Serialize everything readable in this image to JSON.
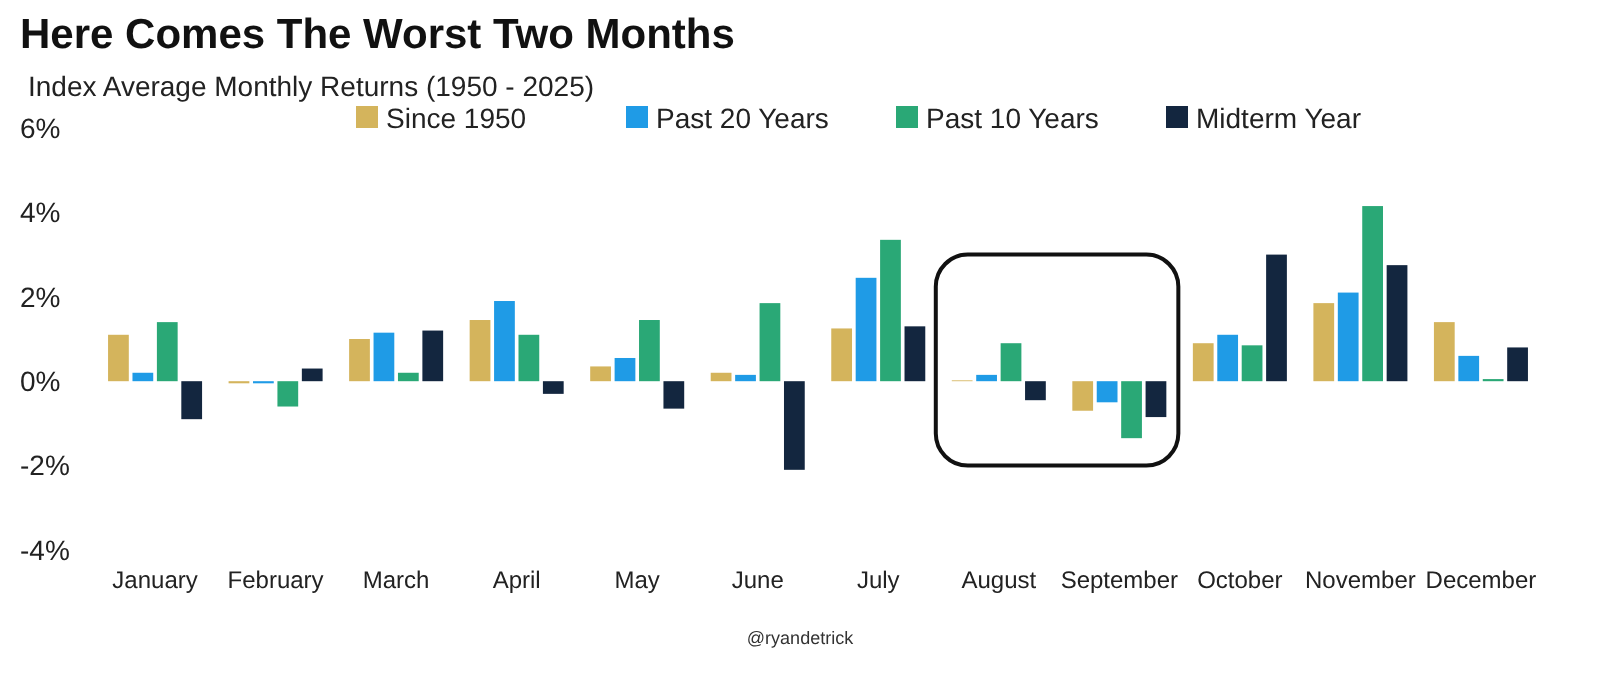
{
  "chart_data": {
    "type": "bar",
    "title": "Here Comes The Worst Two Months",
    "subtitle": "Index Average Monthly Returns (1950 - 2025)",
    "categories": [
      "January",
      "February",
      "March",
      "April",
      "May",
      "June",
      "July",
      "August",
      "September",
      "October",
      "November",
      "December"
    ],
    "series": [
      {
        "name": "Since 1950",
        "color": "#d4b45c",
        "values": [
          1.1,
          -0.05,
          1.0,
          1.45,
          0.35,
          0.2,
          1.25,
          0.02,
          -0.7,
          0.9,
          1.85,
          1.4
        ]
      },
      {
        "name": "Past 20 Years",
        "color": "#1f9be6",
        "values": [
          0.2,
          -0.05,
          1.15,
          1.9,
          0.55,
          0.15,
          2.45,
          0.15,
          -0.5,
          1.1,
          2.1,
          0.6
        ]
      },
      {
        "name": "Past 10 Years",
        "color": "#2aa876",
        "values": [
          1.4,
          -0.6,
          0.2,
          1.1,
          1.45,
          1.85,
          3.35,
          0.9,
          -1.35,
          0.85,
          4.15,
          0.05
        ]
      },
      {
        "name": "Midterm Year",
        "color": "#13263f",
        "values": [
          -0.9,
          0.3,
          1.2,
          -0.3,
          -0.65,
          -2.1,
          1.3,
          -0.45,
          -0.85,
          3.0,
          2.75,
          0.8
        ]
      }
    ],
    "ylim": [
      -4,
      6
    ],
    "yticks": [
      {
        "value": -4,
        "label": "-4%"
      },
      {
        "value": -2,
        "label": "-2%"
      },
      {
        "value": 0,
        "label": "0%"
      },
      {
        "value": 2,
        "label": "2%"
      },
      {
        "value": 4,
        "label": "4%"
      },
      {
        "value": 6,
        "label": "6%"
      }
    ],
    "grid": false,
    "legend": "top",
    "annotations": [
      "@ryandetrick"
    ]
  }
}
